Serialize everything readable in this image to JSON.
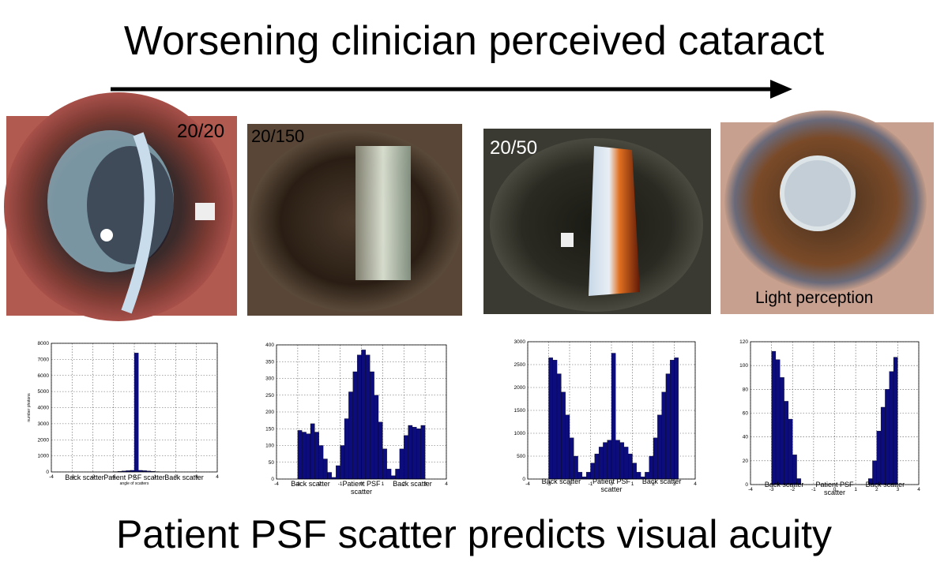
{
  "header_title": "Worsening clinician perceived cataract",
  "footer_title": "Patient PSF scatter predicts visual acuity",
  "photos": [
    {
      "label": "20/20"
    },
    {
      "label": "20/150"
    },
    {
      "label": "20/50"
    },
    {
      "label": "Light perception"
    }
  ],
  "chart_data": [
    {
      "type": "histogram",
      "color": "#0c0c7c",
      "grid": true,
      "x_label": "angle of scatters",
      "y_label": "number photons",
      "bins": [
        -3.2,
        -3.0,
        -2.8,
        -2.6,
        -2.4,
        -2.2,
        -2.0,
        -1.8,
        -1.6,
        -1.4,
        -1.2,
        -1.0,
        -0.8,
        -0.6,
        -0.4,
        -0.2,
        0,
        0.2,
        0.4,
        0.6,
        0.8,
        1.0,
        1.2,
        1.4,
        1.6,
        1.8,
        2.0,
        2.2,
        2.4,
        2.6,
        2.8,
        3.0,
        3.2
      ],
      "counts": [
        0,
        0,
        0,
        0,
        0,
        0,
        0,
        0,
        0,
        0,
        0,
        20,
        40,
        60,
        80,
        100,
        7400,
        100,
        80,
        60,
        40,
        20,
        0,
        0,
        0,
        0,
        0,
        0,
        0,
        0,
        0,
        0
      ],
      "xlim": [
        -4,
        4
      ],
      "xticks": [
        -4,
        -3,
        -2,
        -1,
        0,
        1,
        2,
        3,
        4
      ],
      "ylim": [
        0,
        8000
      ],
      "yticks": [
        0,
        1000,
        2000,
        3000,
        4000,
        5000,
        6000,
        7000,
        8000
      ],
      "annotations": [
        "Back scatter",
        "Patient PSF scatter",
        "Back scatter"
      ]
    },
    {
      "type": "histogram",
      "color": "#0c0c7c",
      "grid": true,
      "bins": [
        -3.2,
        -3.0,
        -2.8,
        -2.6,
        -2.4,
        -2.2,
        -2.0,
        -1.8,
        -1.6,
        -1.4,
        -1.2,
        -1.0,
        -0.8,
        -0.6,
        -0.4,
        -0.2,
        0,
        0.2,
        0.4,
        0.6,
        0.8,
        1.0,
        1.2,
        1.4,
        1.6,
        1.8,
        2.0,
        2.2,
        2.4,
        2.6,
        2.8,
        3.0,
        3.2
      ],
      "counts": [
        0,
        145,
        140,
        135,
        165,
        140,
        100,
        60,
        20,
        5,
        40,
        100,
        180,
        260,
        320,
        370,
        385,
        370,
        320,
        250,
        170,
        90,
        30,
        10,
        30,
        90,
        130,
        160,
        155,
        150,
        160,
        0
      ],
      "xlim": [
        -4,
        4
      ],
      "xticks": [
        -4,
        -3,
        -2,
        -1,
        0,
        1,
        2,
        3,
        4
      ],
      "ylim": [
        0,
        400
      ],
      "yticks": [
        0,
        50,
        100,
        150,
        200,
        250,
        300,
        350,
        400
      ],
      "annotations": [
        "Back scatter",
        "Patient PSF scatter",
        "Back scatter"
      ]
    },
    {
      "type": "histogram",
      "color": "#0c0c7c",
      "grid": true,
      "bins": [
        -3.2,
        -3.0,
        -2.8,
        -2.6,
        -2.4,
        -2.2,
        -2.0,
        -1.8,
        -1.6,
        -1.4,
        -1.2,
        -1.0,
        -0.8,
        -0.6,
        -0.4,
        -0.2,
        0,
        0.2,
        0.4,
        0.6,
        0.8,
        1.0,
        1.2,
        1.4,
        1.6,
        1.8,
        2.0,
        2.2,
        2.4,
        2.6,
        2.8,
        3.0,
        3.2
      ],
      "counts": [
        0,
        2650,
        2600,
        2300,
        1900,
        1400,
        900,
        500,
        150,
        50,
        150,
        350,
        550,
        700,
        800,
        850,
        2750,
        850,
        800,
        700,
        550,
        350,
        150,
        50,
        150,
        500,
        900,
        1400,
        1900,
        2300,
        2600,
        2650
      ],
      "xlim": [
        -4,
        4
      ],
      "xticks": [
        -4,
        -3,
        -2,
        -1,
        0,
        1,
        2,
        3,
        4
      ],
      "ylim": [
        0,
        3000
      ],
      "yticks": [
        0,
        500,
        1000,
        1500,
        2000,
        2500,
        3000
      ],
      "annotations": [
        "Back scatter",
        "Patient PSF scatter",
        "Back scatter"
      ]
    },
    {
      "type": "histogram",
      "color": "#0c0c7c",
      "grid": true,
      "bins": [
        -3.2,
        -3.0,
        -2.8,
        -2.6,
        -2.4,
        -2.2,
        -2.0,
        -1.8,
        -1.6,
        -1.4,
        -1.2,
        -1.0,
        -0.8,
        -0.6,
        -0.4,
        -0.2,
        0,
        0.2,
        0.4,
        0.6,
        0.8,
        1.0,
        1.2,
        1.4,
        1.6,
        1.8,
        2.0,
        2.2,
        2.4,
        2.6,
        2.8,
        3.0,
        3.2
      ],
      "counts": [
        0,
        112,
        105,
        90,
        70,
        55,
        25,
        5,
        0,
        0,
        0,
        0,
        0,
        0,
        0,
        0,
        0,
        0,
        0,
        0,
        0,
        0,
        0,
        0,
        5,
        20,
        45,
        65,
        80,
        95,
        107,
        0
      ],
      "xlim": [
        -4,
        4
      ],
      "xticks": [
        -4,
        -3,
        -2,
        -1,
        0,
        1,
        2,
        3,
        4
      ],
      "ylim": [
        0,
        120
      ],
      "yticks": [
        0,
        20,
        40,
        60,
        80,
        100,
        120
      ],
      "annotations": [
        "Back scatter",
        "Patient PSF scatter",
        "Back scatter"
      ]
    }
  ]
}
